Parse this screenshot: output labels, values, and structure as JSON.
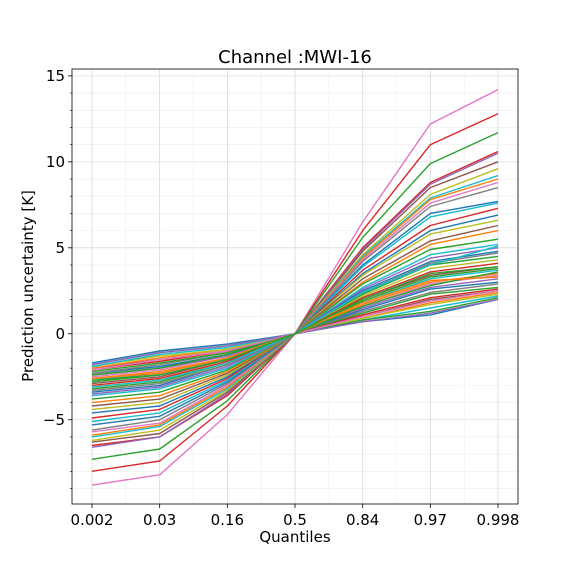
{
  "chart_data": {
    "type": "line",
    "title": "Channel :MWI-16",
    "xlabel": "Quantiles",
    "ylabel": "Prediction uncertainty [K]",
    "categories": [
      "0.002",
      "0.03",
      "0.16",
      "0.5",
      "0.84",
      "0.97",
      "0.998"
    ],
    "yticks": [
      -5,
      0,
      5,
      10,
      15
    ],
    "ytick_labels": [
      "−5",
      "0",
      "5",
      "10",
      "15"
    ],
    "ylim": [
      -9.9,
      15.4
    ],
    "grid": true,
    "colors": [
      "#1f77b4",
      "#ff7f0e",
      "#2ca02c",
      "#d62728",
      "#9467bd",
      "#8c564b",
      "#e377c2",
      "#7f7f7f",
      "#bcbd22",
      "#17becf"
    ],
    "series": [
      {
        "color": "#e377c2",
        "values": [
          -8.8,
          -8.2,
          -4.7,
          0,
          6.5,
          12.2,
          14.2
        ]
      },
      {
        "color": "#d62728",
        "values": [
          -8.0,
          -7.4,
          -4.2,
          0,
          6.0,
          11.0,
          12.8
        ]
      },
      {
        "color": "#2ca02c",
        "values": [
          -7.3,
          -6.7,
          -3.9,
          0,
          5.6,
          9.9,
          11.7
        ]
      },
      {
        "color": "#d62728",
        "values": [
          -6.5,
          -6.0,
          -3.6,
          0,
          5.0,
          8.8,
          10.6
        ]
      },
      {
        "color": "#9467bd",
        "values": [
          -6.6,
          -6.0,
          -3.5,
          0,
          4.9,
          8.7,
          10.5
        ]
      },
      {
        "color": "#8c564b",
        "values": [
          -6.3,
          -5.8,
          -3.4,
          0,
          4.8,
          8.5,
          10.0
        ]
      },
      {
        "color": "#bcbd22",
        "values": [
          -6.2,
          -5.6,
          -3.3,
          0,
          4.6,
          8.1,
          9.6
        ]
      },
      {
        "color": "#17becf",
        "values": [
          -6.0,
          -5.4,
          -3.2,
          0,
          4.5,
          7.9,
          9.2
        ]
      },
      {
        "color": "#ff7f0e",
        "values": [
          -5.9,
          -5.3,
          -3.1,
          0,
          4.4,
          7.8,
          9.0
        ]
      },
      {
        "color": "#e377c2",
        "values": [
          -5.7,
          -5.2,
          -3.0,
          0,
          4.3,
          7.6,
          8.8
        ]
      },
      {
        "color": "#7f7f7f",
        "values": [
          -5.6,
          -5.0,
          -2.9,
          0,
          4.2,
          7.4,
          8.5
        ]
      },
      {
        "color": "#1f77b4",
        "values": [
          -5.3,
          -4.8,
          -2.8,
          0,
          4.0,
          7.0,
          7.7
        ]
      },
      {
        "color": "#17becf",
        "values": [
          -5.1,
          -4.6,
          -2.7,
          0,
          3.9,
          6.8,
          7.6
        ]
      },
      {
        "color": "#d62728",
        "values": [
          -4.9,
          -4.4,
          -2.6,
          0,
          3.7,
          6.3,
          7.3
        ]
      },
      {
        "color": "#1f77b4",
        "values": [
          -4.6,
          -4.2,
          -2.5,
          0,
          3.5,
          6.0,
          6.9
        ]
      },
      {
        "color": "#bcbd22",
        "values": [
          -4.4,
          -4.0,
          -2.4,
          0,
          3.4,
          5.8,
          6.6
        ]
      },
      {
        "color": "#8c564b",
        "values": [
          -4.2,
          -3.8,
          -2.3,
          0,
          3.2,
          5.4,
          6.3
        ]
      },
      {
        "color": "#ff7f0e",
        "values": [
          -4.0,
          -3.6,
          -2.2,
          0,
          3.0,
          5.2,
          6.0
        ]
      },
      {
        "color": "#2ca02c",
        "values": [
          -3.8,
          -3.4,
          -2.1,
          0,
          2.9,
          4.9,
          5.5
        ]
      },
      {
        "color": "#17becf",
        "values": [
          -3.6,
          -3.2,
          -2.0,
          0,
          2.7,
          4.6,
          5.2
        ]
      },
      {
        "color": "#9467bd",
        "values": [
          -3.5,
          -3.1,
          -1.9,
          0,
          2.6,
          4.4,
          5.0
        ]
      },
      {
        "color": "#1f77b4",
        "values": [
          -3.4,
          -3.0,
          -1.8,
          0,
          2.5,
          4.2,
          4.8
        ]
      },
      {
        "color": "#7f7f7f",
        "values": [
          -3.3,
          -2.9,
          -1.8,
          0,
          2.4,
          4.1,
          4.7
        ]
      },
      {
        "color": "#2ca02c",
        "values": [
          -3.2,
          -2.8,
          -1.7,
          0,
          2.3,
          4.0,
          4.5
        ]
      },
      {
        "color": "#bcbd22",
        "values": [
          -3.1,
          -2.7,
          -1.6,
          0,
          2.2,
          3.8,
          4.3
        ]
      },
      {
        "color": "#d62728",
        "values": [
          -3.0,
          -2.6,
          -1.6,
          0,
          2.1,
          3.6,
          4.1
        ]
      },
      {
        "color": "#8c564b",
        "values": [
          -2.9,
          -2.5,
          -1.5,
          0,
          2.0,
          3.4,
          3.9
        ]
      },
      {
        "color": "#2ca02c",
        "values": [
          -2.8,
          -2.4,
          -1.5,
          0,
          1.9,
          3.3,
          3.8
        ]
      },
      {
        "color": "#17becf",
        "values": [
          -2.7,
          -2.3,
          -1.4,
          0,
          1.8,
          3.2,
          3.7
        ]
      },
      {
        "color": "#ff7f0e",
        "values": [
          -2.6,
          -2.2,
          -1.4,
          0,
          1.7,
          3.0,
          3.5
        ]
      },
      {
        "color": "#e377c2",
        "values": [
          -2.5,
          -2.1,
          -1.3,
          0,
          1.6,
          2.9,
          3.4
        ]
      },
      {
        "color": "#9467bd",
        "values": [
          -2.4,
          -2.0,
          -1.3,
          0,
          1.5,
          2.7,
          3.2
        ]
      },
      {
        "color": "#1f77b4",
        "values": [
          -2.3,
          -1.9,
          -1.2,
          0,
          1.4,
          2.6,
          3.0
        ]
      },
      {
        "color": "#7f7f7f",
        "values": [
          -2.3,
          -1.8,
          -1.1,
          0,
          1.3,
          2.4,
          2.9
        ]
      },
      {
        "color": "#2ca02c",
        "values": [
          -2.2,
          -1.7,
          -1.1,
          0,
          1.2,
          2.3,
          2.7
        ]
      },
      {
        "color": "#d62728",
        "values": [
          -2.1,
          -1.6,
          -1.0,
          0,
          1.1,
          2.1,
          2.6
        ]
      },
      {
        "color": "#8c564b",
        "values": [
          -2.0,
          -1.5,
          -1.0,
          0,
          1.0,
          2.0,
          2.5
        ]
      },
      {
        "color": "#ff7f0e",
        "values": [
          -2.0,
          -1.4,
          -0.9,
          0,
          0.9,
          1.8,
          2.4
        ]
      },
      {
        "color": "#bcbd22",
        "values": [
          -1.9,
          -1.3,
          -0.9,
          0,
          0.9,
          1.7,
          2.3
        ]
      },
      {
        "color": "#17becf",
        "values": [
          -1.9,
          -1.2,
          -0.8,
          0,
          0.8,
          1.5,
          2.2
        ]
      },
      {
        "color": "#2ca02c",
        "values": [
          -1.8,
          -1.1,
          -0.7,
          0,
          0.8,
          1.3,
          2.1
        ]
      },
      {
        "color": "#1f77b4",
        "values": [
          -1.7,
          -1.0,
          -0.6,
          0,
          0.7,
          1.1,
          2.0
        ]
      },
      {
        "color": "#9467bd",
        "values": [
          -1.8,
          -1.1,
          -0.7,
          0,
          0.7,
          1.2,
          2.0
        ]
      },
      {
        "color": "#e377c2",
        "values": [
          -2.1,
          -1.5,
          -1.0,
          0,
          1.0,
          1.9,
          2.5
        ]
      },
      {
        "color": "#2ca02c",
        "values": [
          -2.4,
          -2.0,
          -1.2,
          0,
          1.6,
          2.8,
          3.6
        ]
      },
      {
        "color": "#ff7f0e",
        "values": [
          -2.6,
          -2.3,
          -1.4,
          0,
          1.8,
          3.1,
          3.3
        ]
      },
      {
        "color": "#17becf",
        "values": [
          -3.1,
          -2.7,
          -1.7,
          0,
          2.4,
          4.0,
          5.1
        ]
      },
      {
        "color": "#2ca02c",
        "values": [
          -2.7,
          -2.4,
          -1.5,
          0,
          2.0,
          3.5,
          3.9
        ]
      }
    ]
  }
}
